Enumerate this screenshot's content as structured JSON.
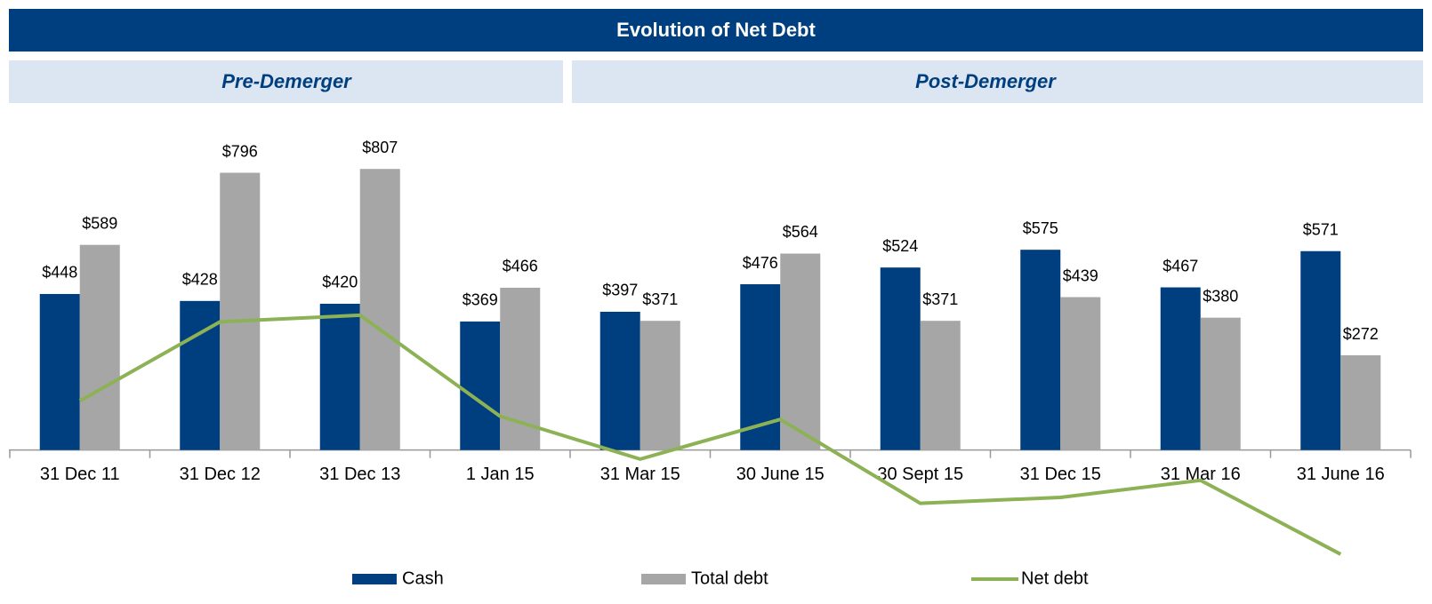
{
  "header": {
    "title": "Evolution of Net Debt",
    "sections": [
      "Pre-Demerger",
      "Post-Demerger"
    ]
  },
  "chart_data": {
    "type": "bar",
    "categories": [
      "31 Dec 11",
      "31 Dec 12",
      "31 Dec 13",
      "1 Jan 15",
      "31 Mar 15",
      "30 June 15",
      "30 Sept 15",
      "31 Dec 15",
      "31 Mar 16",
      "31 June 16"
    ],
    "ylim": [
      -340,
      935
    ],
    "series": [
      {
        "name": "Cash",
        "color": "#003f7f",
        "values": [
          448,
          428,
          420,
          369,
          397,
          476,
          524,
          575,
          467,
          571
        ],
        "value_labels": [
          "$448",
          "$428",
          "$420",
          "$369",
          "$397",
          "$476",
          "$524",
          "$575",
          "$467",
          "$571"
        ]
      },
      {
        "name": "Total debt",
        "color": "#a6a6a6",
        "values": [
          589,
          796,
          807,
          466,
          371,
          564,
          371,
          439,
          380,
          272
        ],
        "value_labels": [
          "$589",
          "$796",
          "$807",
          "$466",
          "$371",
          "$564",
          "$371",
          "$439",
          "$380",
          "$272"
        ]
      },
      {
        "name": "Net debt",
        "color": "#8db255",
        "type": "line",
        "values": [
          141,
          368,
          387,
          97,
          -26,
          88,
          -153,
          -136,
          -87,
          -299
        ]
      }
    ]
  }
}
